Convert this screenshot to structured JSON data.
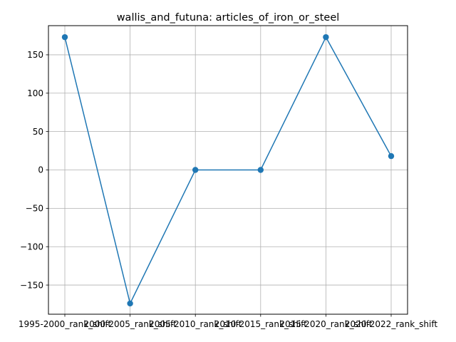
{
  "chart_data": {
    "type": "line",
    "title": "wallis_and_futuna: articles_of_iron_or_steel",
    "xlabel": "",
    "ylabel": "",
    "categories": [
      "1995-2000_rank_shift",
      "2000-2005_rank_shift",
      "2005-2010_rank_shift",
      "2010-2015_rank_shift",
      "2015-2020_rank_shift",
      "2020-2022_rank_shift"
    ],
    "series": [
      {
        "values": [
          173,
          -174,
          0,
          0,
          173,
          18
        ]
      }
    ],
    "ylim": [
      -188,
      188
    ],
    "yticks": [
      -150,
      -100,
      -50,
      0,
      50,
      100,
      150
    ],
    "ytick_labels": [
      "−150",
      "−100",
      "−50",
      "0",
      "50",
      "100",
      "150"
    ],
    "grid": true,
    "line_color": "#1f77b4",
    "marker": "circle"
  }
}
